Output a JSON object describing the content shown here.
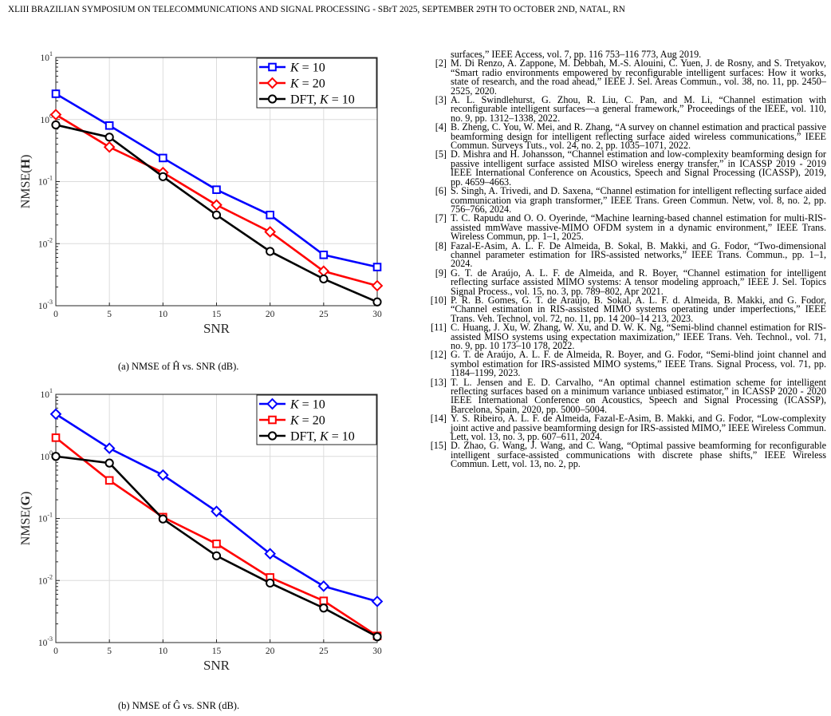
{
  "header": "XLIII BRAZILIAN SYMPOSIUM ON TELECOMMUNICATIONS AND SIGNAL PROCESSING - SBrT 2025, SEPTEMBER 29TH TO OCTOBER 2ND, NATAL, RN",
  "chart_data": [
    {
      "type": "line",
      "caption": "(a)  NMSE of Ĥ vs. SNR (dB).",
      "xlabel": "SNR",
      "ylabel": "NMSE(H)",
      "yscale": "log",
      "ylim": [
        0.001,
        10
      ],
      "xlim": [
        0,
        30
      ],
      "x": [
        0,
        5,
        10,
        15,
        20,
        25,
        30
      ],
      "xticks": [
        "0",
        "5",
        "10",
        "15",
        "20",
        "25",
        "30"
      ],
      "legend": "top-right",
      "series": [
        {
          "name": "K = 10",
          "color": "#0000ff",
          "marker": "square",
          "values": [
            2.6,
            0.8,
            0.24,
            0.074,
            0.029,
            0.0066,
            0.0042
          ]
        },
        {
          "name": "K = 20",
          "color": "#ff0000",
          "marker": "diamond",
          "values": [
            1.2,
            0.36,
            0.14,
            0.042,
            0.0155,
            0.0036,
            0.0021
          ]
        },
        {
          "name": "DFT, K = 10",
          "color": "#000000",
          "marker": "circle",
          "values": [
            0.82,
            0.52,
            0.12,
            0.029,
            0.0075,
            0.0027,
            0.00115
          ]
        }
      ]
    },
    {
      "type": "line",
      "caption": "(b)  NMSE of Ĝ vs. SNR (dB).",
      "xlabel": "SNR",
      "ylabel": "NMSE(G)",
      "yscale": "log",
      "ylim": [
        0.001,
        10
      ],
      "xlim": [
        0,
        30
      ],
      "x": [
        0,
        5,
        10,
        15,
        20,
        25,
        30
      ],
      "xticks": [
        "0",
        "5",
        "10",
        "15",
        "20",
        "25",
        "30"
      ],
      "legend": "top-right",
      "series": [
        {
          "name": "K = 10",
          "color": "#0000ff",
          "marker": "diamond",
          "values": [
            4.8,
            1.35,
            0.5,
            0.13,
            0.027,
            0.0081,
            0.0046
          ]
        },
        {
          "name": "K = 20",
          "color": "#ff0000",
          "marker": "square",
          "values": [
            2.0,
            0.41,
            0.105,
            0.039,
            0.0112,
            0.0047,
            0.00128
          ]
        },
        {
          "name": "DFT, K = 10",
          "color": "#000000",
          "marker": "circle",
          "values": [
            1.0,
            0.78,
            0.098,
            0.025,
            0.0091,
            0.0036,
            0.00124
          ]
        }
      ]
    }
  ],
  "references": {
    "continuation": "surfaces,” IEEE Access, vol. 7, pp. 116 753–116 773, Aug 2019.",
    "items": [
      {
        "num": "[2]",
        "text": "M. Di Renzo, A. Zappone, M. Debbah, M.-S. Alouini, C. Yuen, J. de Rosny, and S. Tretyakov, “Smart radio environments empowered by reconfigurable intelligent surfaces: How it works, state of research, and the road ahead,” IEEE J. Sel. Areas Commun., vol. 38, no. 11, pp. 2450–2525, 2020."
      },
      {
        "num": "[3]",
        "text": "A. L. Swindlehurst, G. Zhou, R. Liu, C. Pan, and M. Li, “Channel estimation with reconfigurable intelligent surfaces—a general framework,” Proceedings of the IEEE, vol. 110, no. 9, pp. 1312–1338, 2022."
      },
      {
        "num": "[4]",
        "text": "B. Zheng, C. You, W. Mei, and R. Zhang, “A survey on channel estimation and practical passive beamforming design for intelligent reflecting surface aided wireless communications,” IEEE Commun. Surveys Tuts., vol. 24, no. 2, pp. 1035–1071, 2022."
      },
      {
        "num": "[5]",
        "text": "D. Mishra and H. Johansson, “Channel estimation and low-complexity beamforming design for passive intelligent surface assisted MISO wireless energy transfer,” in ICASSP 2019 - 2019 IEEE International Conference on Acoustics, Speech and Signal Processing (ICASSP), 2019, pp. 4659–4663."
      },
      {
        "num": "[6]",
        "text": "S. Singh, A. Trivedi, and D. Saxena, “Channel estimation for intelligent reflecting surface aided communication via graph transformer,” IEEE Trans. Green Commun. Netw, vol. 8, no. 2, pp. 756–766, 2024."
      },
      {
        "num": "[7]",
        "text": "T. C. Rapudu and O. O. Oyerinde, “Machine learning-based channel estimation for multi-RIS-assisted mmWave massive-MIMO OFDM system in a dynamic environment,” IEEE Trans. Wireless Commun, pp. 1–1, 2025."
      },
      {
        "num": "[8]",
        "text": "Fazal-E-Asim, A. L. F. De Almeida, B. Sokal, B. Makki, and G. Fodor, “Two-dimensional channel parameter estimation for IRS-assisted networks,” IEEE Trans. Commun., pp. 1–1, 2024."
      },
      {
        "num": "[9]",
        "text": "G. T. de Araújo, A. L. F. de Almeida, and R. Boyer, “Channel estimation for intelligent reflecting surface assisted MIMO systems: A tensor modeling approach,” IEEE J. Sel. Topics Signal Process., vol. 15, no. 3, pp. 789–802, Apr 2021."
      },
      {
        "num": "[10]",
        "text": "P. R. B. Gomes, G. T. de Araújo, B. Sokal, A. L. F. d. Almeida, B. Makki, and G. Fodor, “Channel estimation in RIS-assisted MIMO systems operating under imperfections,” IEEE Trans. Veh. Technol, vol. 72, no. 11, pp. 14 200–14 213, 2023."
      },
      {
        "num": "[11]",
        "text": "C. Huang, J. Xu, W. Zhang, W. Xu, and D. W. K. Ng, “Semi-blind channel estimation for RIS-assisted MISO systems using expectation maximization,” IEEE Trans. Veh. Technol., vol. 71, no. 9, pp. 10 173–10 178, 2022."
      },
      {
        "num": "[12]",
        "text": "G. T. de Araújo, A. L. F. de Almeida, R. Boyer, and G. Fodor, “Semi-blind joint channel and symbol estimation for IRS-assisted MIMO systems,” IEEE Trans. Signal Process, vol. 71, pp. 1184–1199, 2023."
      },
      {
        "num": "[13]",
        "text": "T. L. Jensen and E. D. Carvalho, “An optimal channel estimation scheme for intelligent reflecting surfaces based on a minimum variance unbiased estimator,” in ICASSP 2020 - 2020 IEEE International Conference on Acoustics, Speech and Signal Processing (ICASSP), Barcelona, Spain, 2020, pp. 5000–5004."
      },
      {
        "num": "[14]",
        "text": "Y. S. Ribeiro, A. L. F. de Almeida, Fazal-E-Asim, B. Makki, and G. Fodor, “Low-complexity joint active and passive beamforming design for IRS-assisted MIMO,” IEEE Wireless Commun. Lett, vol. 13, no. 3, pp. 607–611, 2024."
      },
      {
        "num": "[15]",
        "text": "D. Zhao, G. Wang, J. Wang, and C. Wang, “Optimal passive beamforming for reconfigurable intelligent surface-assisted communications with discrete phase shifts,” IEEE Wireless Commun. Lett, vol. 13, no. 2, pp."
      }
    ]
  }
}
